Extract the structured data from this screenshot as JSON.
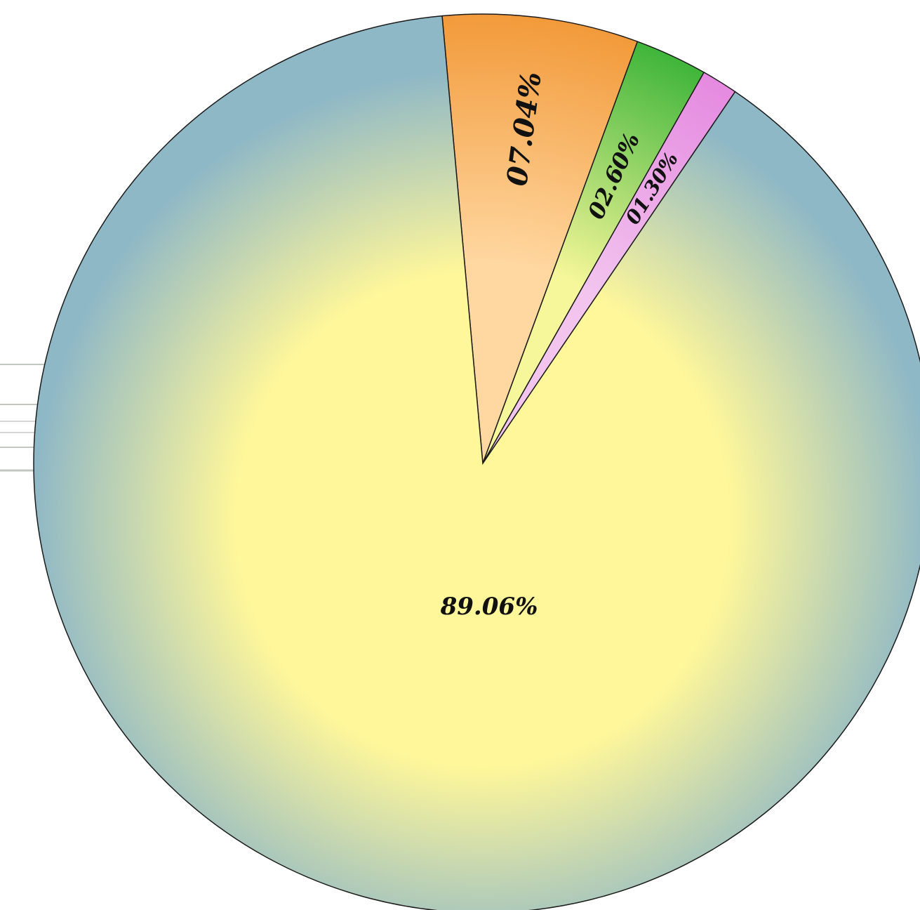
{
  "chart_data": {
    "type": "pie",
    "title": "",
    "start_angle_deg": -5.2,
    "direction": "clockwise",
    "legend": "none",
    "slices": [
      {
        "label": "07.04%",
        "value": 7.04,
        "color_outer": "#f29a3a",
        "color_inner": "#ffd7a0"
      },
      {
        "label": "02.60%",
        "value": 2.6,
        "color_outer": "#3fb53a",
        "color_inner": "#f6f79a"
      },
      {
        "label": "01.30%",
        "value": 1.3,
        "color_outer": "#e58ae0",
        "color_inner": "#f2c4ee"
      },
      {
        "label": "89.06%",
        "value": 89.06,
        "color_outer": "#8fb8c6",
        "color_inner": "#fff79a"
      }
    ]
  }
}
